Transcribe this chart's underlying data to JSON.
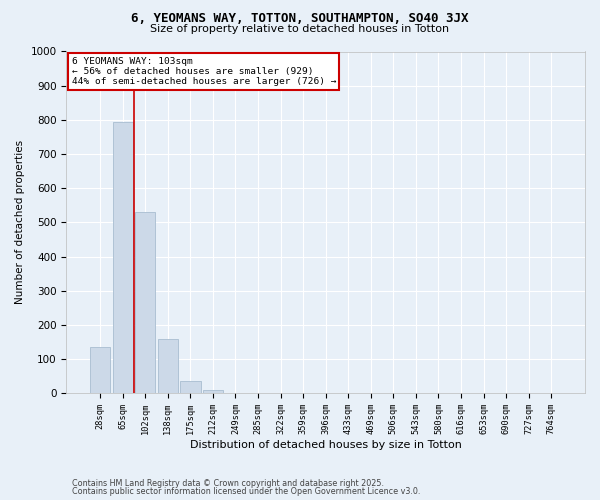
{
  "title1": "6, YEOMANS WAY, TOTTON, SOUTHAMPTON, SO40 3JX",
  "title2": "Size of property relative to detached houses in Totton",
  "xlabel": "Distribution of detached houses by size in Totton",
  "ylabel": "Number of detached properties",
  "bar_color": "#ccd9e8",
  "bar_edge_color": "#a8bdd0",
  "categories": [
    "28sqm",
    "65sqm",
    "102sqm",
    "138sqm",
    "175sqm",
    "212sqm",
    "249sqm",
    "285sqm",
    "322sqm",
    "359sqm",
    "396sqm",
    "433sqm",
    "469sqm",
    "506sqm",
    "543sqm",
    "580sqm",
    "616sqm",
    "653sqm",
    "690sqm",
    "727sqm",
    "764sqm"
  ],
  "values": [
    135,
    795,
    530,
    160,
    35,
    10,
    0,
    0,
    0,
    0,
    0,
    0,
    0,
    0,
    0,
    0,
    0,
    0,
    0,
    0,
    0
  ],
  "vline_x": 1.5,
  "annotation_line1": "6 YEOMANS WAY: 103sqm",
  "annotation_line2": "← 56% of detached houses are smaller (929)",
  "annotation_line3": "44% of semi-detached houses are larger (726) →",
  "vline_color": "#cc0000",
  "annotation_box_edgecolor": "#cc0000",
  "ylim": [
    0,
    1000
  ],
  "yticks": [
    0,
    100,
    200,
    300,
    400,
    500,
    600,
    700,
    800,
    900,
    1000
  ],
  "bg_color": "#e8f0f8",
  "grid_color": "#ffffff",
  "footer1": "Contains HM Land Registry data © Crown copyright and database right 2025.",
  "footer2": "Contains public sector information licensed under the Open Government Licence v3.0."
}
